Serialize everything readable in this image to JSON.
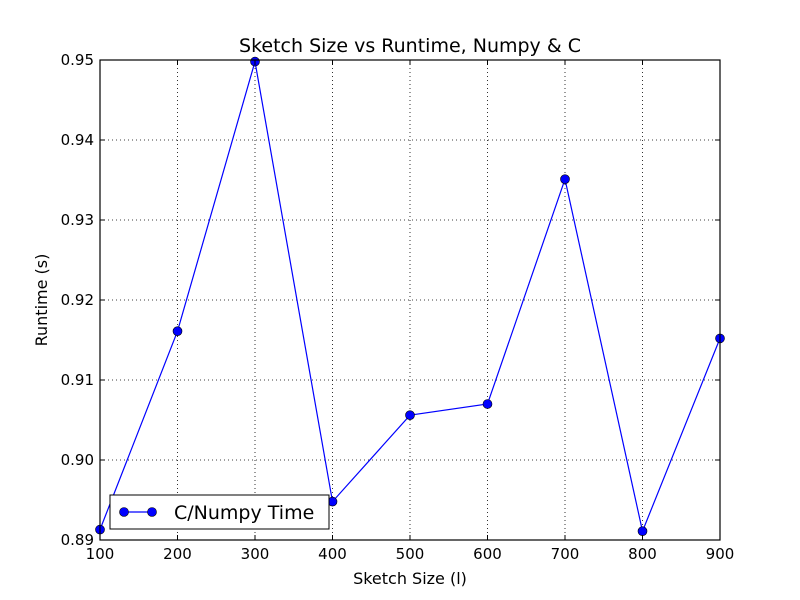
{
  "chart_data": {
    "type": "line",
    "title": "Sketch Size vs Runtime, Numpy & C",
    "xlabel": "Sketch Size (l)",
    "ylabel": "Runtime (s)",
    "xlim": [
      100,
      900
    ],
    "ylim": [
      0.89,
      0.95
    ],
    "xticks": [
      100,
      200,
      300,
      400,
      500,
      600,
      700,
      800,
      900
    ],
    "yticks": [
      0.89,
      0.9,
      0.91,
      0.92,
      0.93,
      0.94,
      0.95
    ],
    "xtick_labels": [
      "100",
      "200",
      "300",
      "400",
      "500",
      "600",
      "700",
      "800",
      "900"
    ],
    "ytick_labels": [
      "0.89",
      "0.90",
      "0.91",
      "0.92",
      "0.93",
      "0.94",
      "0.95"
    ],
    "grid": true,
    "legend_position": "lower-left",
    "series": [
      {
        "name": "C/Numpy Time",
        "color": "#0000ff",
        "marker": "circle",
        "x": [
          100,
          200,
          300,
          400,
          500,
          600,
          700,
          800,
          900
        ],
        "y": [
          0.8913,
          0.9161,
          0.9498,
          0.8948,
          0.9056,
          0.907,
          0.9351,
          0.8911,
          0.9152
        ]
      }
    ]
  }
}
